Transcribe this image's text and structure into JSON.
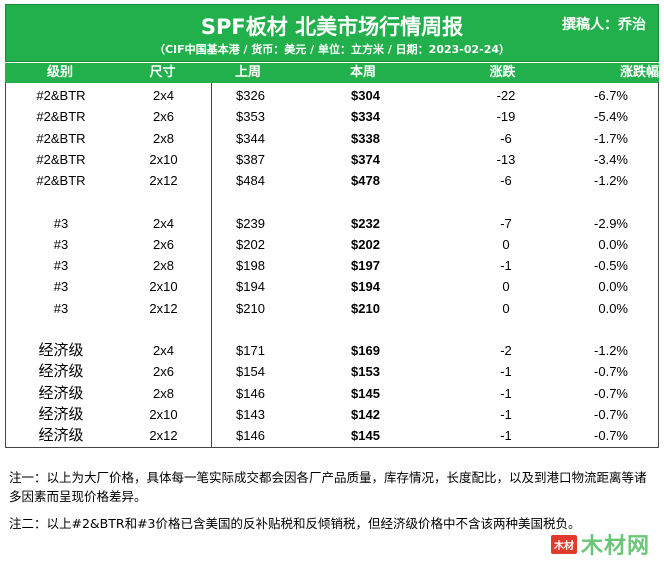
{
  "header": {
    "title": "SPF板材 北美市场行情周报",
    "author": "撰稿人：乔治",
    "subtitle": "（CIF中国基本港 / 货币：美元 / 单位：立方米 / 日期：2023-02-24）"
  },
  "columns": {
    "grade": "级别",
    "size": "尺寸",
    "last_week": "上周",
    "this_week": "本周",
    "change": "涨跌",
    "pct": "涨跌幅"
  },
  "groups": [
    {
      "rows": [
        {
          "grade": "#2&BTR",
          "size": "2x4",
          "last": "$326",
          "this": "$304",
          "chg": "-22",
          "pct": "-6.7%"
        },
        {
          "grade": "#2&BTR",
          "size": "2x6",
          "last": "$353",
          "this": "$334",
          "chg": "-19",
          "pct": "-5.4%"
        },
        {
          "grade": "#2&BTR",
          "size": "2x8",
          "last": "$344",
          "this": "$338",
          "chg": "-6",
          "pct": "-1.7%"
        },
        {
          "grade": "#2&BTR",
          "size": "2x10",
          "last": "$387",
          "this": "$374",
          "chg": "-13",
          "pct": "-3.4%"
        },
        {
          "grade": "#2&BTR",
          "size": "2x12",
          "last": "$484",
          "this": "$478",
          "chg": "-6",
          "pct": "-1.2%"
        }
      ]
    },
    {
      "rows": [
        {
          "grade": "#3",
          "size": "2x4",
          "last": "$239",
          "this": "$232",
          "chg": "-7",
          "pct": "-2.9%"
        },
        {
          "grade": "#3",
          "size": "2x6",
          "last": "$202",
          "this": "$202",
          "chg": "0",
          "pct": "0.0%"
        },
        {
          "grade": "#3",
          "size": "2x8",
          "last": "$198",
          "this": "$197",
          "chg": "-1",
          "pct": "-0.5%"
        },
        {
          "grade": "#3",
          "size": "2x10",
          "last": "$194",
          "this": "$194",
          "chg": "0",
          "pct": "0.0%"
        },
        {
          "grade": "#3",
          "size": "2x12",
          "last": "$210",
          "this": "$210",
          "chg": "0",
          "pct": "0.0%"
        }
      ]
    },
    {
      "rows": [
        {
          "grade": "经济级",
          "size": "2x4",
          "last": "$171",
          "this": "$169",
          "chg": "-2",
          "pct": "-1.2%"
        },
        {
          "grade": "经济级",
          "size": "2x6",
          "last": "$154",
          "this": "$153",
          "chg": "-1",
          "pct": "-0.7%"
        },
        {
          "grade": "经济级",
          "size": "2x8",
          "last": "$146",
          "this": "$145",
          "chg": "-1",
          "pct": "-0.7%"
        },
        {
          "grade": "经济级",
          "size": "2x10",
          "last": "$143",
          "this": "$142",
          "chg": "-1",
          "pct": "-0.7%"
        },
        {
          "grade": "经济级",
          "size": "2x12",
          "last": "$146",
          "this": "$145",
          "chg": "-1",
          "pct": "-0.7%"
        }
      ]
    }
  ],
  "notes": {
    "note1": "注一：以上为大厂价格，具体每一笔实际成交都会因各厂产品质量，库存情况，长度配比，以及到港口物流距离等诸多因素而呈现价格差异。",
    "note2": "注二：以上#2&BTR和#3价格已含美国的反补贴税和反倾销税，但经济级价格中不含该两种美国税负。"
  },
  "watermark": {
    "badge": "木材",
    "text": "木材网"
  },
  "colors": {
    "accent": "#21b04b",
    "watermark_red": "#e23b2e"
  }
}
